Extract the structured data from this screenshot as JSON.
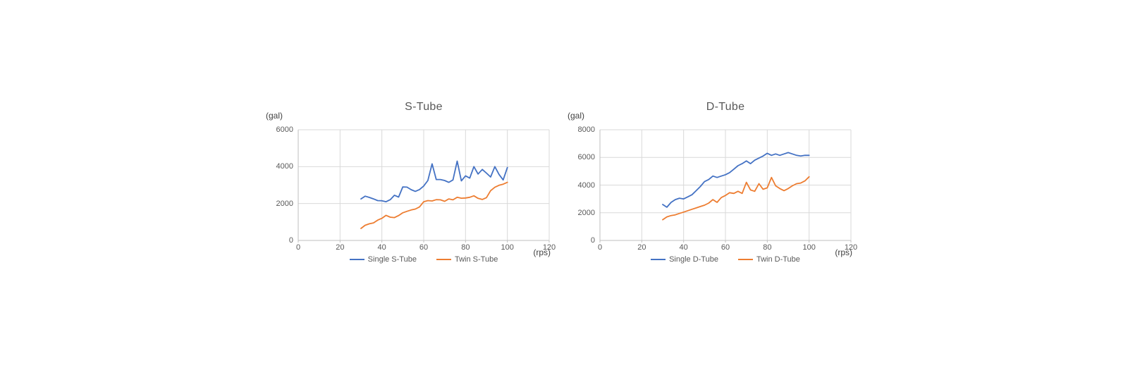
{
  "page": {
    "background": "#ffffff"
  },
  "style": {
    "grid_color": "#d9d9d9",
    "axis_color": "#bfbfbf",
    "tick_text_color": "#595959",
    "title_color": "#595959",
    "unit_text_color": "#3f3f3f",
    "series_blue": "#4472C4",
    "series_orange": "#ED7D31"
  },
  "chart_data": [
    {
      "type": "line",
      "title": "S-Tube",
      "ylabel": "(gal)",
      "xlabel": "(rps)",
      "xlim": [
        0,
        120
      ],
      "ylim": [
        0,
        6000
      ],
      "xticks": [
        0,
        20,
        40,
        60,
        80,
        100,
        120
      ],
      "yticks": [
        0,
        2000,
        4000,
        6000
      ],
      "grid": true,
      "legend_position": "bottom",
      "x": [
        30,
        32,
        34,
        36,
        38,
        40,
        42,
        44,
        46,
        48,
        50,
        52,
        54,
        56,
        58,
        60,
        62,
        64,
        66,
        68,
        70,
        72,
        74,
        76,
        78,
        80,
        82,
        84,
        86,
        88,
        90,
        92,
        94,
        96,
        98,
        100
      ],
      "series": [
        {
          "name": "Single S-Tube",
          "color": "#4472C4",
          "values": [
            2250,
            2400,
            2330,
            2250,
            2160,
            2150,
            2100,
            2210,
            2450,
            2350,
            2900,
            2890,
            2750,
            2660,
            2760,
            2950,
            3250,
            4150,
            3300,
            3300,
            3250,
            3150,
            3280,
            4300,
            3230,
            3500,
            3380,
            4000,
            3600,
            3850,
            3650,
            3440,
            4000,
            3580,
            3280,
            3950
          ]
        },
        {
          "name": "Twin S-Tube",
          "color": "#ED7D31",
          "values": [
            650,
            820,
            900,
            950,
            1100,
            1200,
            1360,
            1260,
            1240,
            1350,
            1500,
            1580,
            1650,
            1700,
            1820,
            2100,
            2160,
            2140,
            2210,
            2200,
            2120,
            2250,
            2200,
            2340,
            2290,
            2300,
            2340,
            2420,
            2280,
            2220,
            2320,
            2700,
            2880,
            2990,
            3050,
            3150
          ]
        }
      ]
    },
    {
      "type": "line",
      "title": "D-Tube",
      "ylabel": "(gal)",
      "xlabel": "(rps)",
      "xlim": [
        0,
        120
      ],
      "ylim": [
        0,
        8000
      ],
      "xticks": [
        0,
        20,
        40,
        60,
        80,
        100,
        120
      ],
      "yticks": [
        0,
        2000,
        4000,
        6000,
        8000
      ],
      "grid": true,
      "legend_position": "bottom",
      "x": [
        30,
        32,
        34,
        36,
        38,
        40,
        42,
        44,
        46,
        48,
        50,
        52,
        54,
        56,
        58,
        60,
        62,
        64,
        66,
        68,
        70,
        72,
        74,
        76,
        78,
        80,
        82,
        84,
        86,
        88,
        90,
        92,
        94,
        96,
        98,
        100
      ],
      "series": [
        {
          "name": "Single D-Tube",
          "color": "#4472C4",
          "values": [
            2600,
            2400,
            2750,
            2950,
            3050,
            3000,
            3150,
            3300,
            3600,
            3900,
            4250,
            4400,
            4650,
            4550,
            4650,
            4750,
            4900,
            5150,
            5400,
            5550,
            5750,
            5550,
            5800,
            5950,
            6100,
            6300,
            6150,
            6250,
            6150,
            6250,
            6350,
            6250,
            6150,
            6100,
            6150,
            6150
          ]
        },
        {
          "name": "Twin D-Tube",
          "color": "#ED7D31",
          "values": [
            1500,
            1700,
            1800,
            1850,
            1950,
            2050,
            2150,
            2250,
            2350,
            2450,
            2550,
            2700,
            2950,
            2750,
            3100,
            3250,
            3450,
            3400,
            3550,
            3400,
            4200,
            3650,
            3550,
            4100,
            3700,
            3800,
            4550,
            3950,
            3750,
            3600,
            3750,
            3950,
            4100,
            4150,
            4300,
            4600
          ]
        }
      ]
    }
  ]
}
